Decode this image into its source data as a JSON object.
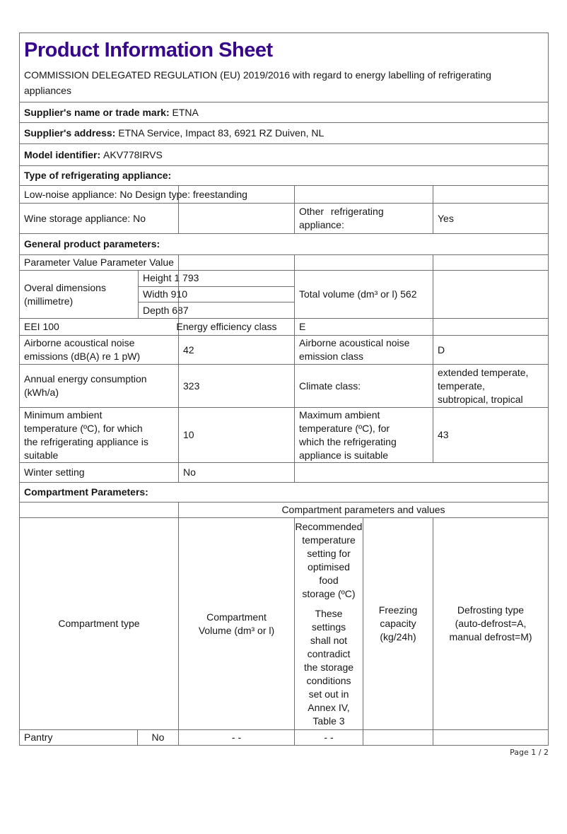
{
  "colors": {
    "title_purple": "#38088C",
    "grid_line_gray": "#6e6e6e",
    "text": "#161616"
  },
  "header": {
    "title": "Product Information Sheet",
    "regulation": "COMMISSION DELEGATED REGULATION (EU) 2019/2016 with regard to energy labelling of refrigerating\nappliances"
  },
  "supplier": {
    "name_label": "Supplier's name or trade mark:",
    "name_value": "ETNA",
    "address_label": "Supplier's address:",
    "address_value": "ETNA Service, Impact 83, 6921 RZ Duiven, NL",
    "model_label": "Model identifier:",
    "model_value": "AKV778IRVS"
  },
  "type_section": {
    "heading": "Type of refrigerating appliance:",
    "low_noise_design": "Low-noise appliance: No Design type: freestanding",
    "wine_storage": "Wine storage appliance: No",
    "other_label": "Other refrigerating\nappliance:",
    "other_value": "Yes"
  },
  "general": {
    "heading": "General product parameters:",
    "param_header": "Parameter Value Parameter Value",
    "dims_label": "Overal dimensions\n(millimetre)",
    "dims_rows": [
      "Height 1 793",
      "Width 910",
      "Depth 687"
    ],
    "total_volume": "Total volume (dm³ or l) 562",
    "eei": "EEI 100",
    "efficiency_label": "Energy efficiency class",
    "efficiency_value": "E",
    "noise_label": "Airborne acoustical noise\nemissions (dB(A) re 1 pW)",
    "noise_value": "42",
    "noise_class_label": "Airborne acoustical noise\nemission class",
    "noise_class_value": "D",
    "energy_label": "Annual energy consumption\n(kWh/a)",
    "energy_value": "323",
    "climate_label": "Climate class:",
    "climate_value": "extended temperate,\ntemperate,\nsubtropical, tropical",
    "min_temp_label": "Minimum ambient\ntemperature (ºC), for which\nthe refrigerating appliance is\nsuitable",
    "min_temp_value": "10",
    "max_temp_label": "Maximum ambient\ntemperature (ºC), for\nwhich the refrigerating\nappliance is suitable",
    "max_temp_value": "43",
    "winter_label": "Winter setting",
    "winter_value": "No"
  },
  "compartments": {
    "heading": "Compartment Parameters:",
    "table_header": "Compartment parameters and values",
    "col_type": "Compartment type",
    "col_volume": "Compartment\nVolume (dm³ or l)",
    "col_temp_p1": "Recommended\ntemperature\nsetting for\noptimised\nfood\nstorage (ºC)",
    "col_temp_p2": "These\nsettings\nshall not\ncontradict\nthe storage\nconditions\nset out in\nAnnex IV,\nTable 3",
    "col_freezing": "Freezing\ncapacity\n(kg/24h)",
    "col_defrost": "Defrosting type\n(auto-defrost=A,\nmanual defrost=M)",
    "rows": [
      {
        "type": "Pantry",
        "present": "No",
        "volume": "- -",
        "temp": "- -",
        "freezing": "",
        "defrost": ""
      }
    ]
  },
  "footer": {
    "page_indicator": "Page 1 / 2"
  }
}
